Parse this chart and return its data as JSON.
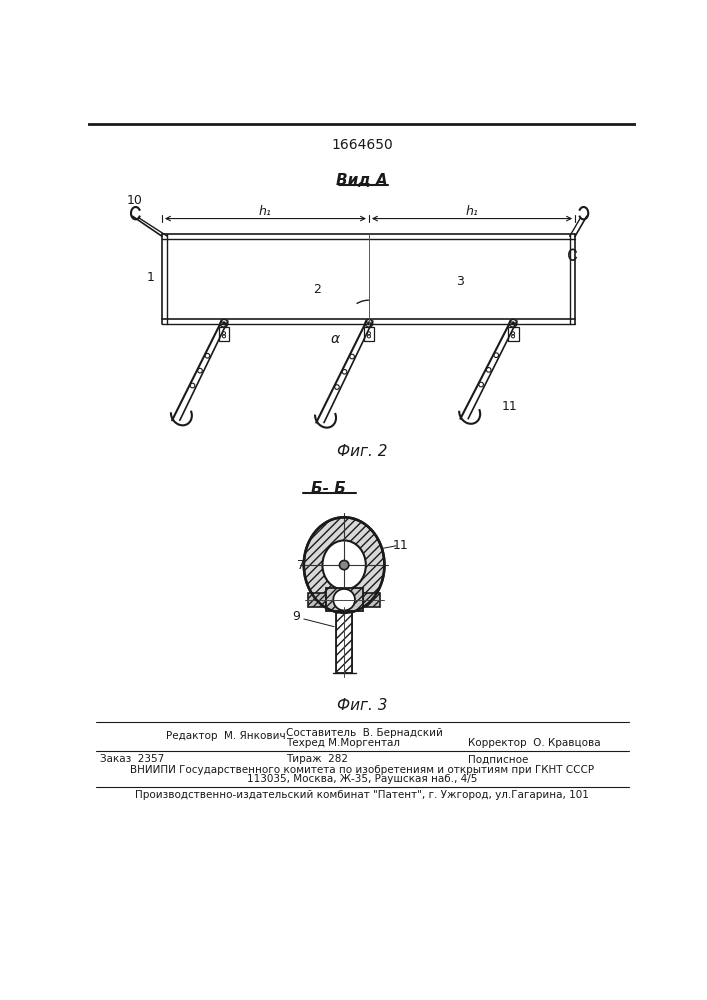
{
  "patent_number": "1664650",
  "fig2_label": "Фиг. 2",
  "fig3_label": "Фиг. 3",
  "view_a_label": "Вид А",
  "section_bb_label": "Б- Б",
  "footer_line1_left": "Редактор  М. Янкович",
  "footer_line1_mid": "Составитель  В. Бернадский",
  "footer_line2_mid": "Техред М.Моргентал",
  "footer_line2_right": "Корректор  О. Кравцова",
  "footer_line3_left": "Заказ  2357",
  "footer_line3_mid": "Тираж  282",
  "footer_line3_right": "Подписное",
  "footer_line4": "ВНИИПИ Государственного комитета по изобретениям и открытиям при ГКНТ СССР",
  "footer_line5": "113035, Москва, Ж-35, Раушская наб., 4/5",
  "footer_line6": "Производственно-издательский комбинат \"Патент\", г. Ужгород, ул.Гагарина, 101",
  "bg_color": "#ffffff",
  "line_color": "#1a1a1a"
}
